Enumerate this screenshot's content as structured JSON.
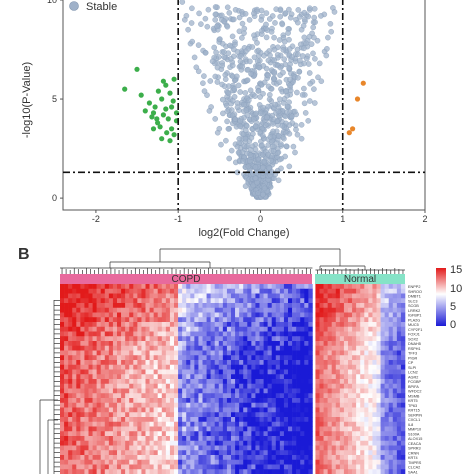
{
  "chart_data": [
    {
      "type": "scatter",
      "panel_label": "",
      "title": "",
      "xlabel": "log2(Fold Change)",
      "ylabel": "-log10(P-Value)",
      "xlim": [
        -2.4,
        2.0
      ],
      "ylim": [
        -0.6,
        10.1
      ],
      "xticks": [
        -2,
        -1,
        0,
        1,
        2
      ],
      "yticks": [
        0,
        5,
        10
      ],
      "xtick_labels": [
        "-2",
        "-1",
        "0",
        "1",
        "2"
      ],
      "ytick_labels": [
        "0",
        "5",
        "10"
      ],
      "thresholds": {
        "x": [
          -1,
          1
        ],
        "y": 1.3
      },
      "grid": false,
      "legend": {
        "position": "top-left",
        "entries": [
          "Stable"
        ]
      },
      "series": [
        {
          "name": "Stable",
          "color": "#9fb1c9",
          "note_shape": "funnel from (0,0) widening with y up to |x|<1 and y<=10",
          "points": [
            [
              0.02,
              0.1
            ],
            [
              -0.05,
              0.3
            ],
            [
              0.08,
              0.5
            ],
            [
              -0.12,
              0.8
            ],
            [
              0.15,
              1.0
            ],
            [
              -0.2,
              1.2
            ],
            [
              0.25,
              1.5
            ],
            [
              -0.3,
              1.8
            ],
            [
              0.3,
              2.1
            ],
            [
              -0.35,
              2.4
            ],
            [
              0.4,
              2.6
            ],
            [
              -0.42,
              2.9
            ],
            [
              0.45,
              3.2
            ],
            [
              -0.5,
              3.5
            ],
            [
              0.5,
              3.7
            ],
            [
              -0.55,
              4.0
            ],
            [
              0.55,
              4.3
            ],
            [
              -0.6,
              4.6
            ],
            [
              0.6,
              4.9
            ],
            [
              -0.65,
              5.2
            ],
            [
              0.65,
              5.5
            ],
            [
              -0.7,
              5.8
            ],
            [
              0.7,
              6.1
            ],
            [
              -0.75,
              6.4
            ],
            [
              0.72,
              6.8
            ],
            [
              -0.8,
              7.1
            ],
            [
              0.78,
              7.4
            ],
            [
              -0.85,
              7.8
            ],
            [
              0.82,
              8.1
            ],
            [
              -0.88,
              8.5
            ],
            [
              0.85,
              8.8
            ],
            [
              -0.9,
              9.2
            ],
            [
              0.88,
              9.6
            ],
            [
              -0.95,
              9.9
            ],
            [
              0.1,
              0.2
            ],
            [
              -0.18,
              0.6
            ],
            [
              0.22,
              0.9
            ],
            [
              -0.28,
              1.3
            ],
            [
              0.35,
              1.6
            ],
            [
              -0.38,
              2.0
            ],
            [
              0.42,
              2.3
            ],
            [
              -0.48,
              2.7
            ],
            [
              0.5,
              3.0
            ],
            [
              -0.52,
              3.3
            ],
            [
              0.58,
              3.9
            ],
            [
              -0.62,
              4.4
            ],
            [
              0.66,
              4.8
            ],
            [
              -0.68,
              5.4
            ],
            [
              0.74,
              5.9
            ],
            [
              -0.78,
              6.6
            ],
            [
              0.8,
              7.2
            ],
            [
              -0.83,
              7.9
            ],
            [
              0.86,
              8.4
            ],
            [
              -0.92,
              9.0
            ],
            [
              0.9,
              9.4
            ],
            [
              -0.3,
              6.0
            ],
            [
              0.35,
              6.5
            ],
            [
              -0.4,
              7.0
            ],
            [
              0.45,
              7.5
            ],
            [
              -0.5,
              8.0
            ],
            [
              0.5,
              8.5
            ],
            [
              -0.55,
              9.0
            ],
            [
              0.6,
              9.5
            ],
            [
              -0.2,
              5.0
            ],
            [
              0.25,
              5.5
            ],
            [
              -0.1,
              3.5
            ],
            [
              0.12,
              4.0
            ],
            [
              -0.15,
              4.5
            ],
            [
              0.05,
              2.5
            ],
            [
              -0.08,
              2.0
            ]
          ]
        },
        {
          "name": "",
          "color": "#3cae4b",
          "points": [
            [
              -1.65,
              5.5
            ],
            [
              -1.45,
              5.2
            ],
            [
              -1.35,
              4.8
            ],
            [
              -1.3,
              4.3
            ],
            [
              -1.25,
              3.8
            ],
            [
              -1.2,
              5.0
            ],
            [
              -1.15,
              4.5
            ],
            [
              -1.12,
              4.0
            ],
            [
              -1.08,
              3.5
            ],
            [
              -1.05,
              3.2
            ],
            [
              -1.22,
              3.6
            ],
            [
              -1.18,
              4.2
            ],
            [
              -1.28,
              4.6
            ],
            [
              -1.1,
              5.3
            ],
            [
              -1.06,
              4.9
            ],
            [
              -1.32,
              4.1
            ],
            [
              -1.4,
              4.4
            ],
            [
              -1.02,
              3.9
            ],
            [
              -1.14,
              3.3
            ],
            [
              -1.24,
              5.4
            ],
            [
              -1.02,
              4.3
            ],
            [
              -1.3,
              3.5
            ],
            [
              -1.1,
              2.9
            ],
            [
              -1.2,
              3.0
            ],
            [
              -1.15,
              5.7
            ],
            [
              -1.5,
              6.5
            ],
            [
              -1.05,
              6.0
            ],
            [
              -1.18,
              5.9
            ],
            [
              -1.08,
              4.6
            ],
            [
              -1.26,
              4.0
            ]
          ]
        },
        {
          "name": "",
          "color": "#e8862a",
          "points": [
            [
              1.25,
              5.8
            ],
            [
              1.18,
              5.0
            ],
            [
              1.12,
              3.5
            ],
            [
              1.08,
              3.3
            ]
          ]
        }
      ]
    },
    {
      "type": "heatmap",
      "panel_label": "B",
      "groups": [
        "COPD",
        "Normal"
      ],
      "group_colors": [
        "#e86a9d",
        "#86e3c7"
      ],
      "colorbar": {
        "ticks": [
          15,
          10,
          5,
          0
        ],
        "colors": [
          "#e21a1a",
          "#ffffff",
          "#1a1ad6"
        ]
      },
      "rows": 40,
      "cols_copd": 62,
      "cols_normal": 22,
      "gene_labels": [
        "ENPP2",
        "SHROO",
        "DMBT1",
        "SLC3",
        "SCGB",
        "LRRK2",
        "IGFBP1",
        "PLA2G",
        "MUC5",
        "CYP2F1",
        "FOXJ1",
        "SOX2",
        "DNAH5",
        "RSPH1",
        "TFF3",
        "PIGR",
        "CP",
        "SLPI",
        "LCN2",
        "AGR2",
        "FCGBP",
        "BPIFA",
        "WFDC2",
        "MSMB",
        "KRT5",
        "TP63",
        "KRT15",
        "SERPIN",
        "CXCL1",
        "IL8",
        "MMP10",
        "S100A",
        "ALOX15",
        "CEACA",
        "SPRR3",
        "CRNN",
        "KRT4",
        "TMPRS",
        "CLCA2",
        "SAA1"
      ]
    }
  ]
}
